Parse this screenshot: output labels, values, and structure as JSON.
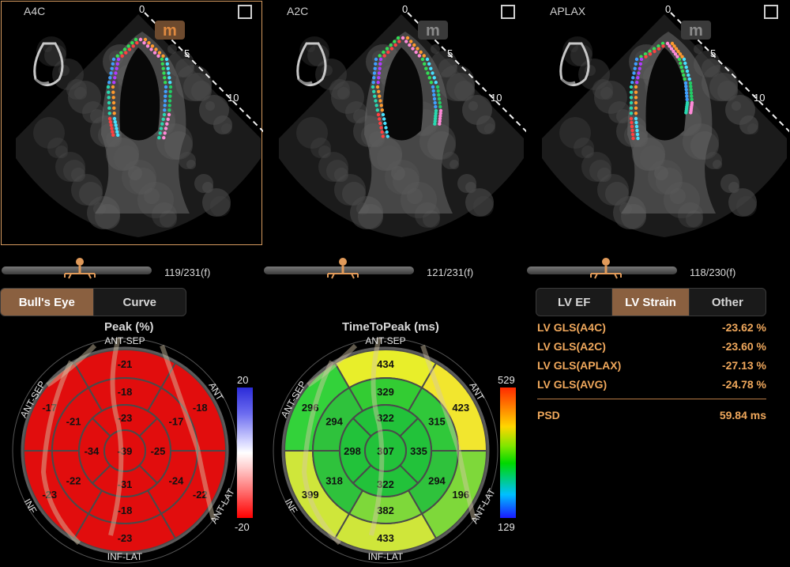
{
  "views": [
    {
      "label": "A4C",
      "logo": "m",
      "depth_ticks": [
        "0",
        "5",
        "10"
      ],
      "frame": "119/231(f)",
      "selected": true
    },
    {
      "label": "A2C",
      "logo": "m",
      "depth_ticks": [
        "0",
        "5",
        "10"
      ],
      "frame": "121/231(f)",
      "selected": false
    },
    {
      "label": "APLAX",
      "logo": "m",
      "depth_ticks": [
        "0",
        "5",
        "10"
      ],
      "frame": "118/230(f)",
      "selected": false
    }
  ],
  "left_tabs": [
    {
      "label": "Bull's Eye",
      "active": true
    },
    {
      "label": "Curve",
      "active": false
    }
  ],
  "right_tabs": [
    {
      "label": "LV EF",
      "active": false
    },
    {
      "label": "LV Strain",
      "active": true
    },
    {
      "label": "Other",
      "active": false
    }
  ],
  "peak_chart": {
    "title": "Peak (%)",
    "ring_labels": {
      "top": "ANT-SEP",
      "top_right": "ANT",
      "right": "ANT-LAT",
      "bottom": "INF-LAT",
      "left": "INF",
      "top_left": "ANT-SEP"
    },
    "segments": {
      "basal": [
        "-21",
        "-18",
        "-22",
        "-23",
        "-23",
        "-17"
      ],
      "mid": [
        "-18",
        "-17",
        "-24",
        "-18",
        "-22",
        "-21"
      ],
      "apical": [
        "-23",
        "-25",
        "-31",
        "-34"
      ],
      "apex": "-39"
    },
    "scale": {
      "max": "20",
      "min": "-20"
    },
    "colors": {
      "fill": "#e10d0d",
      "max": "#2b2bd8",
      "min": "#ff0000"
    }
  },
  "ttp_chart": {
    "title": "TimeToPeak (ms)",
    "ring_labels": {
      "top": "ANT-SEP",
      "top_right": "ANT",
      "right": "ANT-LAT",
      "bottom": "INF-LAT",
      "left": "INF",
      "top_left": "ANT-SEP"
    },
    "segments": {
      "basal": [
        "434",
        "423",
        "196",
        "433",
        "399",
        "296"
      ],
      "mid": [
        "329",
        "315",
        "294",
        "382",
        "318",
        "294"
      ],
      "apical": [
        "322",
        "335",
        "322",
        "298"
      ],
      "apex": "307"
    },
    "scale": {
      "max": "529",
      "min": "129"
    }
  },
  "results": {
    "rows": [
      {
        "label": "LV GLS(A4C)",
        "value": "-23.62 %"
      },
      {
        "label": "LV GLS(A2C)",
        "value": "-23.60 %"
      },
      {
        "label": "LV GLS(APLAX)",
        "value": "-27.13 %"
      },
      {
        "label": "LV GLS(AVG)",
        "value": "-24.78 %"
      }
    ],
    "psd": {
      "label": "PSD",
      "value": "59.84 ms"
    },
    "accent": "#f0a85c"
  }
}
